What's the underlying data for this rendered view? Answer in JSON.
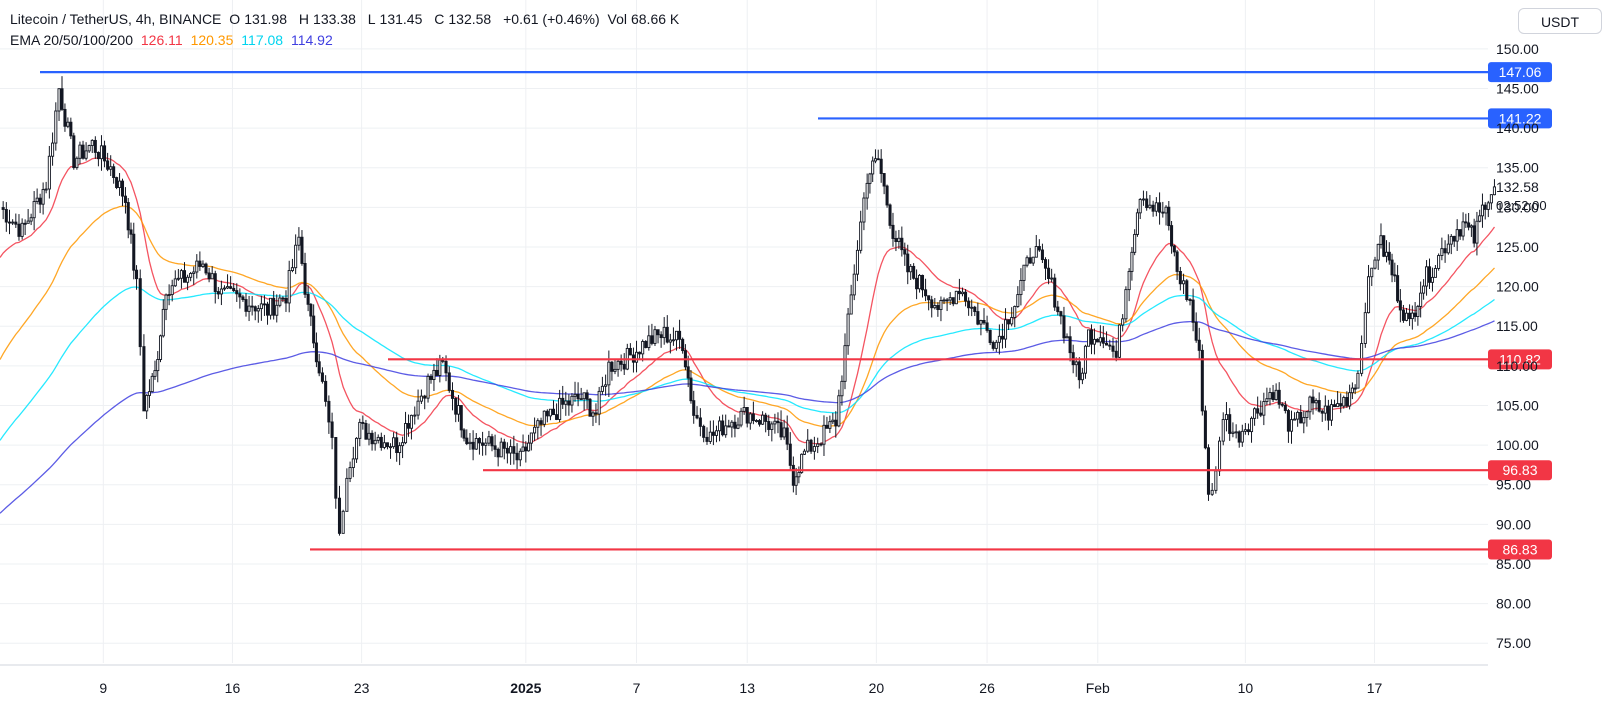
{
  "header": {
    "symbol": "Litecoin / TetherUS, 4h, BINANCE",
    "o_label": "O",
    "o_value": "131.98",
    "h_label": "H",
    "h_value": "133.38",
    "l_label": "L",
    "l_value": "131.45",
    "c_label": "C",
    "c_value": "132.58",
    "change": "+0.61 (+0.46%)",
    "vol_label": "Vol",
    "vol_value": "68.66 K",
    "ema_label": "EMA 20/50/100/200",
    "ema20": "126.11",
    "ema50": "120.35",
    "ema100": "117.08",
    "ema200": "114.92"
  },
  "currency_button": "USDT",
  "price_axis": {
    "ticks": [
      "150.00",
      "145.00",
      "140.00",
      "135.00",
      "130.00",
      "125.00",
      "120.00",
      "115.00",
      "110.00",
      "105.00",
      "100.00",
      "95.00",
      "90.00",
      "85.00",
      "80.00",
      "75.00"
    ],
    "current_price": "132.58",
    "countdown": "02:52:00"
  },
  "colors": {
    "ema20": "#f23645",
    "ema50": "#ff9800",
    "ema100": "#00e5ff",
    "ema200": "#3f3fe0",
    "resistance": "#2962ff",
    "support": "#f23645",
    "candle": "#131722",
    "grid": "#eef0f3"
  },
  "chart_data": {
    "type": "candlestick",
    "title": "Litecoin / TetherUS, 4h, BINANCE",
    "x_ticks": [
      "9",
      "16",
      "23",
      "2025",
      "7",
      "13",
      "20",
      "26",
      "Feb",
      "10",
      "17"
    ],
    "ylim": [
      72.5,
      152
    ],
    "grid": true,
    "levels": [
      {
        "value": 147.06,
        "label": "147.06",
        "kind": "resistance"
      },
      {
        "value": 141.22,
        "label": "141.22",
        "kind": "resistance"
      },
      {
        "value": 110.82,
        "label": "110.82",
        "kind": "support"
      },
      {
        "value": 96.83,
        "label": "96.83",
        "kind": "support"
      },
      {
        "value": 86.83,
        "label": "86.83",
        "kind": "support"
      }
    ],
    "price_path": [
      {
        "d": 0.0,
        "p": 130
      },
      {
        "d": 1.2,
        "p": 127
      },
      {
        "d": 2.5,
        "p": 133
      },
      {
        "d": 3.2,
        "p": 145
      },
      {
        "d": 4.0,
        "p": 136
      },
      {
        "d": 5.0,
        "p": 138
      },
      {
        "d": 6.0,
        "p": 135
      },
      {
        "d": 6.8,
        "p": 131
      },
      {
        "d": 7.4,
        "p": 120
      },
      {
        "d": 7.8,
        "p": 105
      },
      {
        "d": 8.4,
        "p": 109
      },
      {
        "d": 9.0,
        "p": 120
      },
      {
        "d": 10.0,
        "p": 121
      },
      {
        "d": 11.0,
        "p": 123
      },
      {
        "d": 12.0,
        "p": 119
      },
      {
        "d": 13.5,
        "p": 118
      },
      {
        "d": 14.5,
        "p": 117
      },
      {
        "d": 15.5,
        "p": 119
      },
      {
        "d": 16.2,
        "p": 126
      },
      {
        "d": 16.7,
        "p": 117
      },
      {
        "d": 17.3,
        "p": 110
      },
      {
        "d": 18.0,
        "p": 100
      },
      {
        "d": 18.4,
        "p": 88
      },
      {
        "d": 18.8,
        "p": 97
      },
      {
        "d": 19.5,
        "p": 102
      },
      {
        "d": 20.5,
        "p": 101
      },
      {
        "d": 21.5,
        "p": 100
      },
      {
        "d": 22.3,
        "p": 104
      },
      {
        "d": 23.2,
        "p": 108
      },
      {
        "d": 24.0,
        "p": 110
      },
      {
        "d": 24.7,
        "p": 105
      },
      {
        "d": 25.3,
        "p": 101
      },
      {
        "d": 26.5,
        "p": 100
      },
      {
        "d": 27.5,
        "p": 99
      },
      {
        "d": 28.2,
        "p": 98
      },
      {
        "d": 28.8,
        "p": 101
      },
      {
        "d": 29.5,
        "p": 103
      },
      {
        "d": 30.5,
        "p": 105
      },
      {
        "d": 31.5,
        "p": 106
      },
      {
        "d": 32.3,
        "p": 104
      },
      {
        "d": 33.0,
        "p": 110
      },
      {
        "d": 34.0,
        "p": 111
      },
      {
        "d": 35.0,
        "p": 113
      },
      {
        "d": 36.0,
        "p": 114
      },
      {
        "d": 37.0,
        "p": 113
      },
      {
        "d": 37.6,
        "p": 104
      },
      {
        "d": 38.5,
        "p": 101
      },
      {
        "d": 39.5,
        "p": 103
      },
      {
        "d": 40.5,
        "p": 104
      },
      {
        "d": 41.5,
        "p": 103
      },
      {
        "d": 42.5,
        "p": 101
      },
      {
        "d": 43.0,
        "p": 96
      },
      {
        "d": 43.6,
        "p": 99
      },
      {
        "d": 44.5,
        "p": 101
      },
      {
        "d": 45.3,
        "p": 103
      },
      {
        "d": 45.8,
        "p": 112
      },
      {
        "d": 46.3,
        "p": 122
      },
      {
        "d": 47.0,
        "p": 134
      },
      {
        "d": 47.6,
        "p": 136
      },
      {
        "d": 48.4,
        "p": 127
      },
      {
        "d": 49.2,
        "p": 122
      },
      {
        "d": 50.0,
        "p": 120
      },
      {
        "d": 51.0,
        "p": 117
      },
      {
        "d": 52.0,
        "p": 120
      },
      {
        "d": 53.0,
        "p": 116
      },
      {
        "d": 54.0,
        "p": 113
      },
      {
        "d": 55.0,
        "p": 118
      },
      {
        "d": 56.0,
        "p": 125
      },
      {
        "d": 57.0,
        "p": 120
      },
      {
        "d": 58.0,
        "p": 112
      },
      {
        "d": 58.5,
        "p": 108
      },
      {
        "d": 59.0,
        "p": 114
      },
      {
        "d": 59.8,
        "p": 114
      },
      {
        "d": 60.5,
        "p": 111
      },
      {
        "d": 61.2,
        "p": 123
      },
      {
        "d": 61.8,
        "p": 132
      },
      {
        "d": 62.5,
        "p": 130
      },
      {
        "d": 63.2,
        "p": 129
      },
      {
        "d": 63.8,
        "p": 122
      },
      {
        "d": 64.5,
        "p": 118
      },
      {
        "d": 65.0,
        "p": 111
      },
      {
        "d": 65.5,
        "p": 94
      },
      {
        "d": 65.9,
        "p": 96
      },
      {
        "d": 66.3,
        "p": 104
      },
      {
        "d": 67.0,
        "p": 101
      },
      {
        "d": 68.0,
        "p": 104
      },
      {
        "d": 69.0,
        "p": 107
      },
      {
        "d": 70.0,
        "p": 102
      },
      {
        "d": 71.0,
        "p": 105
      },
      {
        "d": 72.0,
        "p": 104
      },
      {
        "d": 73.0,
        "p": 106
      },
      {
        "d": 73.6,
        "p": 109
      },
      {
        "d": 74.0,
        "p": 118
      },
      {
        "d": 74.7,
        "p": 126
      },
      {
        "d": 75.3,
        "p": 123
      },
      {
        "d": 75.9,
        "p": 118
      },
      {
        "d": 76.4,
        "p": 115
      },
      {
        "d": 77.0,
        "p": 120
      },
      {
        "d": 77.8,
        "p": 123
      },
      {
        "d": 78.5,
        "p": 126
      },
      {
        "d": 79.3,
        "p": 128
      },
      {
        "d": 79.9,
        "p": 126
      },
      {
        "d": 80.5,
        "p": 131
      },
      {
        "d": 81.0,
        "p": 132.58
      }
    ]
  }
}
